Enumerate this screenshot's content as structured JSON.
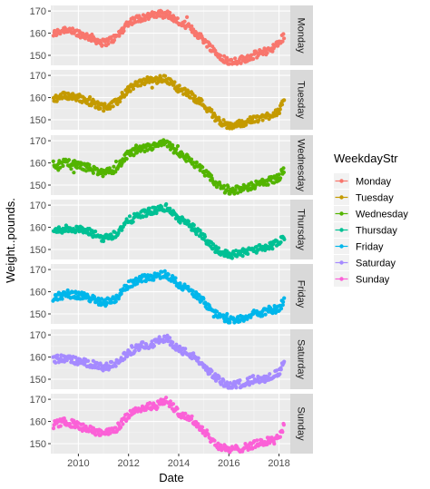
{
  "chart_data": {
    "type": "scatter",
    "facet_by": "WeekdayStr",
    "facet_strip_position": "right",
    "xlabel": "Date",
    "ylabel": "Weight..pounds.",
    "x_ticks": [
      "2010",
      "2012",
      "2014",
      "2016",
      "2018"
    ],
    "xlim": [
      "2008-10",
      "2018-06"
    ],
    "y_ticks": [
      150,
      160,
      170
    ],
    "ylim": [
      145,
      172
    ],
    "grid": true,
    "legend": {
      "title": "WeekdayStr",
      "placement": "right",
      "entries": [
        "Monday",
        "Tuesday",
        "Wednesday",
        "Thursday",
        "Friday",
        "Saturday",
        "Sunday"
      ]
    },
    "colors": [
      "#F8766D",
      "#C49A00",
      "#53B400",
      "#00C094",
      "#00B6EB",
      "#A58AFF",
      "#FB61D7"
    ],
    "trend_x": [
      2009.0,
      2009.5,
      2010.0,
      2010.5,
      2011.0,
      2011.5,
      2012.0,
      2012.5,
      2013.0,
      2013.5,
      2014.0,
      2014.5,
      2015.0,
      2015.5,
      2016.0,
      2016.5,
      2017.0,
      2017.5,
      2018.0,
      2018.2
    ],
    "series": [
      {
        "name": "Monday",
        "y": [
          159.5,
          162,
          160,
          158,
          155.5,
          158,
          165,
          167,
          168,
          169,
          165,
          162,
          157,
          151,
          147,
          148,
          150,
          152,
          155,
          159
        ]
      },
      {
        "name": "Tuesday",
        "y": [
          159.5,
          161,
          160,
          158,
          155.5,
          157.5,
          164,
          167,
          168,
          168.5,
          164,
          161,
          157,
          150.5,
          147,
          148.5,
          150,
          151.5,
          154,
          158
        ]
      },
      {
        "name": "Wednesday",
        "y": [
          159,
          160,
          159,
          157.5,
          155,
          157.5,
          164,
          166,
          167.5,
          169,
          164,
          161,
          156,
          150.5,
          147.5,
          148,
          150,
          151.5,
          153.5,
          157
        ]
      },
      {
        "name": "Thursday",
        "y": [
          158,
          159.5,
          159,
          157.5,
          155,
          157,
          163,
          166,
          167.5,
          169,
          164,
          160.5,
          155.5,
          150,
          147.5,
          148.5,
          150,
          151,
          153,
          156
        ]
      },
      {
        "name": "Friday",
        "y": [
          157,
          159,
          158.5,
          157,
          155,
          157,
          163,
          166,
          167,
          168,
          163.5,
          160,
          155.5,
          150,
          147,
          148,
          150,
          151,
          152.5,
          156
        ]
      },
      {
        "name": "Saturday",
        "y": [
          159,
          159.5,
          158,
          157,
          155,
          157,
          162,
          165,
          166,
          169,
          163.5,
          161,
          156,
          150.5,
          147,
          148,
          150,
          150.5,
          153,
          157
        ]
      },
      {
        "name": "Sunday",
        "y": [
          158.5,
          160,
          158,
          156,
          154.5,
          156.5,
          163,
          166,
          167,
          169.5,
          164,
          161,
          156,
          149.5,
          147,
          148,
          149.5,
          151,
          153,
          158
        ]
      }
    ]
  }
}
